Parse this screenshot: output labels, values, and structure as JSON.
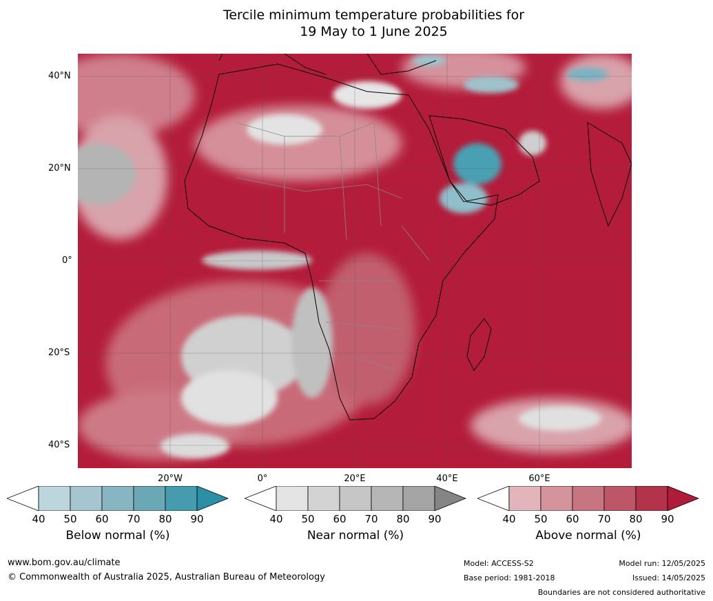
{
  "title": {
    "line1": "Tercile minimum temperature probabilities for",
    "line2": "19 May to 1 June 2025"
  },
  "map": {
    "lat_labels": [
      "40°N",
      "20°N",
      "0°",
      "20°S",
      "40°S"
    ],
    "lon_labels": [
      "20°W",
      "0°",
      "20°E",
      "40°E",
      "60°E"
    ],
    "colors": {
      "ocean_dominant": "#b31c3a",
      "above_light": "#e0b8bf",
      "near_gray": "#c8c8c8",
      "below_teal": "#4aa0b3"
    }
  },
  "colorbars": [
    {
      "title": "Below normal (%)",
      "ticks": [
        "40",
        "50",
        "60",
        "70",
        "80",
        "90"
      ],
      "colors": [
        "#ffffff",
        "#bdd5dc",
        "#a6c6cf",
        "#87b5c2",
        "#6aa8b6",
        "#469cae",
        "#2b8fa5"
      ]
    },
    {
      "title": "Near normal (%)",
      "ticks": [
        "40",
        "50",
        "60",
        "70",
        "80",
        "90"
      ],
      "colors": [
        "#ffffff",
        "#e4e4e4",
        "#d3d3d3",
        "#c6c6c6",
        "#b6b6b6",
        "#a5a5a5",
        "#858585"
      ]
    },
    {
      "title": "Above normal (%)",
      "ticks": [
        "40",
        "50",
        "60",
        "70",
        "80",
        "90"
      ],
      "colors": [
        "#ffffff",
        "#e2b5bc",
        "#d4949e",
        "#c77580",
        "#bd5767",
        "#b3334b",
        "#b11b3a"
      ]
    }
  ],
  "footer": {
    "url": "www.bom.gov.au/climate",
    "copyright": "© Commonwealth of Australia 2025, Australian Bureau of Meteorology",
    "model": "Model: ACCESS-S2",
    "base_period": "Base period: 1981-2018",
    "model_run": "Model run: 12/05/2025",
    "issued": "Issued: 14/05/2025",
    "disclaimer": "Boundaries are not considered authoritative"
  }
}
